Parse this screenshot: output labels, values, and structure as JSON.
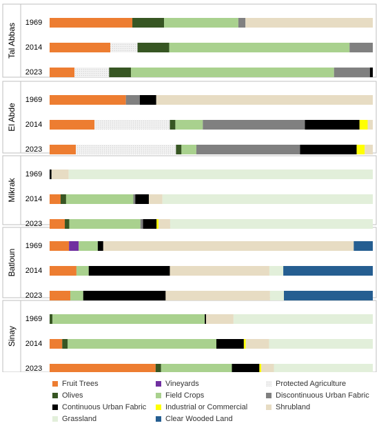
{
  "chart_data": {
    "type": "bar",
    "orientation": "horizontal",
    "stacked": "percent",
    "title": "",
    "xlabel": "",
    "ylabel": "",
    "xlim": [
      0,
      100
    ],
    "grid": false,
    "legend_position": "bottom",
    "categories": [
      "Fruit Trees",
      "Vineyards",
      "Protected Agriculture",
      "Olives",
      "Field Crops",
      "Discontinuous Urban Fabric",
      "Continuous Urban Fabric",
      "Industrial or Commercial",
      "Shrubland",
      "Grassland",
      "Clear Wooded Land"
    ],
    "legend_order": [
      "Fruit Trees",
      "Vineyards",
      "Protected Agriculture",
      "Olives",
      "Field Crops",
      "Discontinuous Urban Fabric",
      "Continuous Urban Fabric",
      "Industrial or Commercial",
      "Shrubland",
      "Grassland",
      "Clear Wooded Land"
    ],
    "colors": {
      "Fruit Trees": "#ed7d31",
      "Vineyards": "#7030a0",
      "Protected Agriculture": "#f1f1f1",
      "Olives": "#375623",
      "Field Crops": "#a9d18e",
      "Discontinuous Urban Fabric": "#808080",
      "Continuous Urban Fabric": "#000000",
      "Industrial or Commercial": "#ffff00",
      "Shrubland": "#e7dcc3",
      "Grassland": "#e2efda",
      "Clear Wooded Land": "#255e91"
    },
    "textured_categories": [
      "Protected Agriculture"
    ],
    "groups": [
      {
        "name": "Tal Abbas",
        "rows": [
          {
            "year": "1969",
            "values": [
              25.6,
              0,
              0,
              9.8,
              23.0,
              2.2,
              0,
              0,
              39.4,
              0,
              0
            ]
          },
          {
            "year": "2014",
            "values": [
              18.8,
              0,
              8.4,
              9.8,
              55.8,
              7.2,
              0,
              0,
              0,
              0,
              0
            ]
          },
          {
            "year": "2023",
            "values": [
              7.7,
              0,
              10.7,
              6.8,
              62.8,
              11.1,
              0.9,
              0,
              0,
              0,
              0
            ]
          }
        ]
      },
      {
        "name": "El Abde",
        "rows": [
          {
            "year": "1969",
            "values": [
              23.6,
              0,
              0,
              0,
              0,
              4.3,
              5.1,
              0,
              67.0,
              0,
              0
            ]
          },
          {
            "year": "2014",
            "values": [
              13.9,
              0,
              23.3,
              1.7,
              8.5,
              31.6,
              16.9,
              2.5,
              1.6,
              0,
              0
            ]
          },
          {
            "year": "2023",
            "values": [
              8.1,
              0,
              31.0,
              1.7,
              4.6,
              32.1,
              17.5,
              2.5,
              2.5,
              0,
              0
            ]
          }
        ]
      },
      {
        "name": "Mikrak",
        "rows": [
          {
            "year": "1969",
            "values": [
              0,
              0,
              0,
              0,
              0,
              0,
              0.6,
              0,
              5.3,
              94.1,
              0
            ]
          },
          {
            "year": "2014",
            "values": [
              3.4,
              0,
              0,
              1.7,
              20.8,
              0.6,
              4.2,
              0,
              4.2,
              65.1,
              0
            ]
          },
          {
            "year": "2023",
            "values": [
              4.7,
              0,
              0,
              1.4,
              22.0,
              0.8,
              4.2,
              0.6,
              3.6,
              62.7,
              0
            ]
          }
        ]
      },
      {
        "name": "Batloun",
        "rows": [
          {
            "year": "1969",
            "values": [
              6.0,
              3.0,
              0,
              0,
              5.9,
              0,
              1.7,
              0,
              77.5,
              0,
              5.9
            ]
          },
          {
            "year": "2014",
            "values": [
              8.3,
              0,
              0,
              0,
              3.8,
              0,
              25.1,
              0,
              30.8,
              4.3,
              27.7
            ]
          },
          {
            "year": "2023",
            "values": [
              6.4,
              0,
              0,
              0,
              4.0,
              0,
              25.5,
              0,
              32.3,
              4.3,
              27.5
            ]
          }
        ]
      },
      {
        "name": "Sinay",
        "rows": [
          {
            "year": "1969",
            "values": [
              0,
              0,
              0,
              0.9,
              47.1,
              0,
              0.4,
              0,
              8.5,
              43.1,
              0
            ]
          },
          {
            "year": "2014",
            "values": [
              3.9,
              0,
              0,
              1.7,
              46.0,
              0,
              8.5,
              0.6,
              7.2,
              32.1,
              0
            ]
          },
          {
            "year": "2023",
            "values": [
              32.8,
              0,
              0,
              1.7,
              21.9,
              0,
              8.5,
              0.6,
              3.9,
              30.6,
              0
            ]
          }
        ]
      }
    ]
  }
}
